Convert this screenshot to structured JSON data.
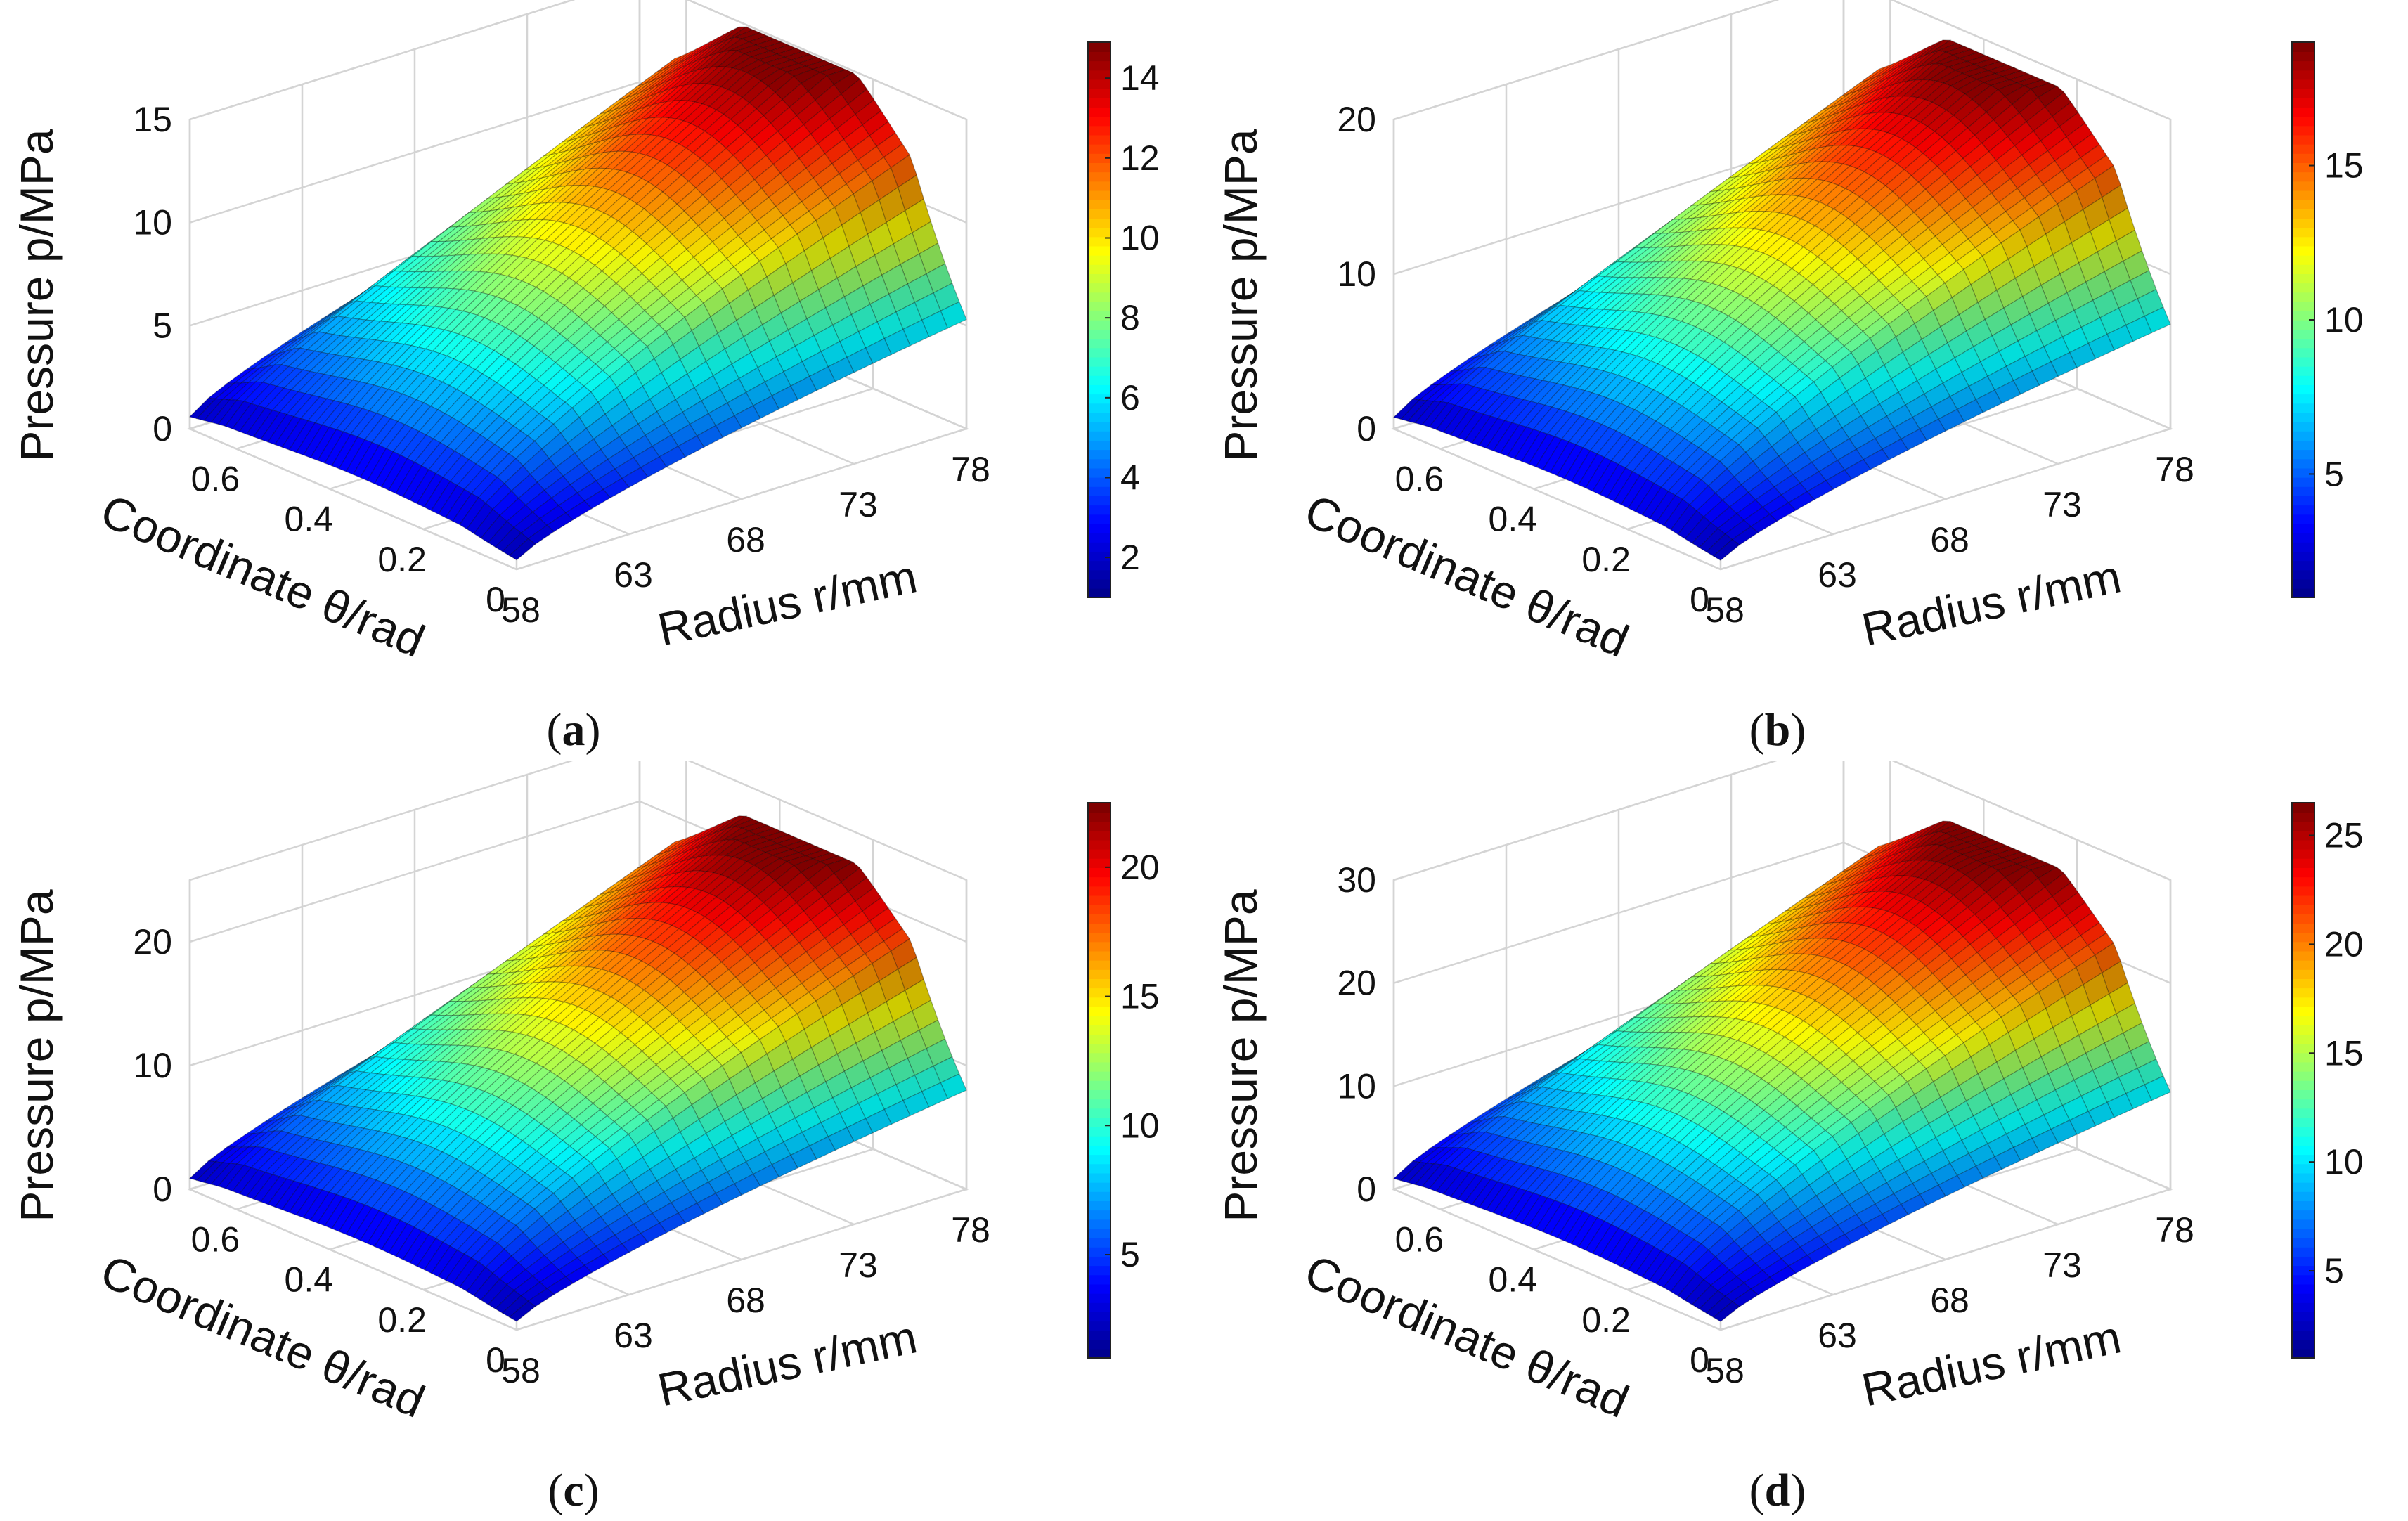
{
  "colors": {
    "colormap": [
      "#00008f",
      "#0000ff",
      "#0080ff",
      "#00ffff",
      "#80ff80",
      "#ffff00",
      "#ff8000",
      "#ff0000",
      "#800000"
    ],
    "grid": "#d4d4d4",
    "axis": "#555555"
  },
  "chart_data": [
    {
      "type": "surface3d",
      "panel": "a",
      "panel_label": "a",
      "zlabel": "Pressure p/MPa",
      "ylabel": "Coordinate θ/rad",
      "xlabel": "Radius r/mm",
      "x_ticks": [
        "58",
        "63",
        "68",
        "73",
        "78"
      ],
      "x_range": [
        58,
        78
      ],
      "y_ticks": [
        "0",
        "0.2",
        "0.4",
        "0.6"
      ],
      "y_range": [
        0,
        0.7
      ],
      "z_ticks": [
        "0",
        "5",
        "10",
        "15"
      ],
      "zlim": [
        0,
        15
      ],
      "z_max": 14.9,
      "colorbar_ticks": [
        "2",
        "4",
        "6",
        "8",
        "10",
        "12",
        "14"
      ],
      "colorbar_range": [
        1,
        14.9
      ]
    },
    {
      "type": "surface3d",
      "panel": "b",
      "panel_label": "b",
      "zlabel": "Pressure p/MPa",
      "ylabel": "Coordinate θ/rad",
      "xlabel": "Radius r/mm",
      "x_ticks": [
        "58",
        "63",
        "68",
        "73",
        "78"
      ],
      "x_range": [
        58,
        78
      ],
      "y_ticks": [
        "0",
        "0.2",
        "0.4",
        "0.6"
      ],
      "y_range": [
        0,
        0.7
      ],
      "z_ticks": [
        "0",
        "10",
        "20"
      ],
      "zlim": [
        0,
        20
      ],
      "z_max": 19,
      "colorbar_ticks": [
        "5",
        "10",
        "15"
      ],
      "colorbar_range": [
        1,
        19
      ]
    },
    {
      "type": "surface3d",
      "panel": "c",
      "panel_label": "c",
      "zlabel": "Pressure p/MPa",
      "ylabel": "Coordinate θ/rad",
      "xlabel": "Radius r/mm",
      "x_ticks": [
        "58",
        "63",
        "68",
        "73",
        "78"
      ],
      "x_range": [
        58,
        78
      ],
      "y_ticks": [
        "0",
        "0.2",
        "0.4",
        "0.6"
      ],
      "y_range": [
        0,
        0.7
      ],
      "z_ticks": [
        "0",
        "10",
        "20"
      ],
      "zlim": [
        0,
        25
      ],
      "z_max": 22.5,
      "colorbar_ticks": [
        "5",
        "10",
        "15",
        "20"
      ],
      "colorbar_range": [
        1,
        22.5
      ]
    },
    {
      "type": "surface3d",
      "panel": "d",
      "panel_label": "d",
      "zlabel": "Pressure p/MPa",
      "ylabel": "Coordinate θ/rad",
      "xlabel": "Radius r/mm",
      "x_ticks": [
        "58",
        "63",
        "68",
        "73",
        "78"
      ],
      "x_range": [
        58,
        78
      ],
      "y_ticks": [
        "0",
        "0.2",
        "0.4",
        "0.6"
      ],
      "y_range": [
        0,
        0.7
      ],
      "z_ticks": [
        "0",
        "10",
        "20",
        "30"
      ],
      "zlim": [
        0,
        30
      ],
      "z_max": 26.5,
      "colorbar_ticks": [
        "5",
        "10",
        "15",
        "20",
        "25"
      ],
      "colorbar_range": [
        1,
        26.5
      ]
    }
  ]
}
